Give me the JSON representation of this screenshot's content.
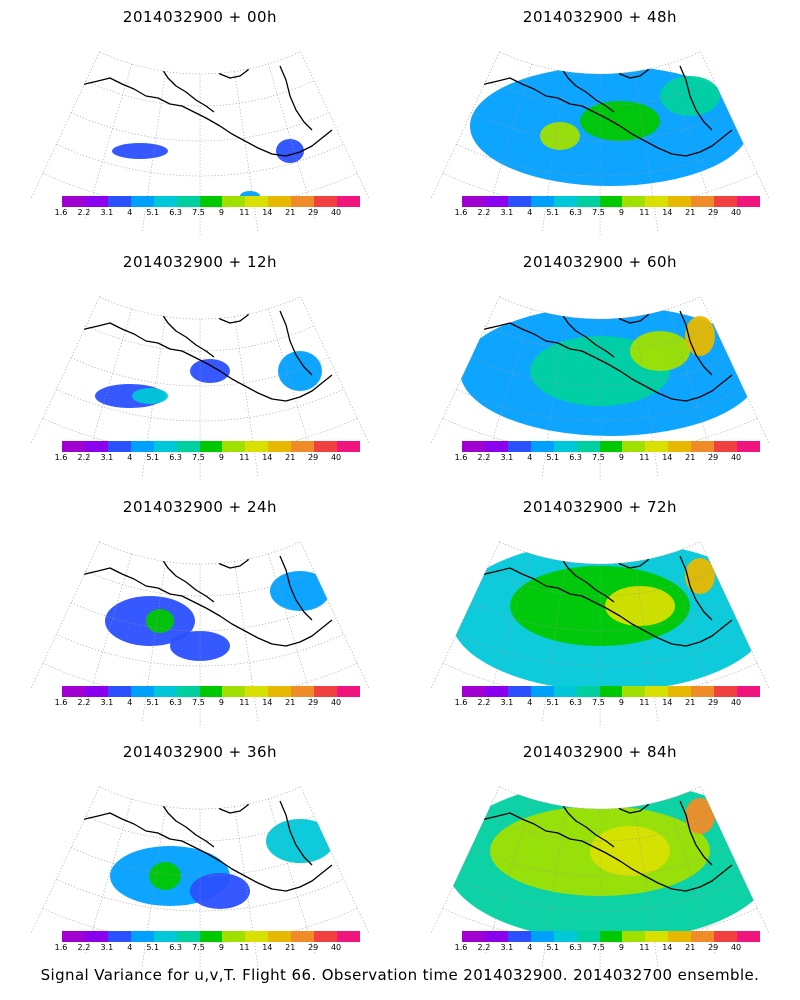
{
  "colorbar": {
    "labels": [
      "1.6",
      "2.2",
      "3.1",
      "4",
      "5.1",
      "6.3",
      "7.5",
      "9",
      "11",
      "14",
      "21",
      "29",
      "40"
    ],
    "colors": [
      "#a000d0",
      "#8a00ee",
      "#2a50ff",
      "#00a0ff",
      "#00c8d8",
      "#00d0a0",
      "#00c800",
      "#a0e000",
      "#d8e000",
      "#e8b800",
      "#f08c28",
      "#f04040",
      "#f0147d"
    ]
  },
  "panels": [
    {
      "title": "2014032900 + 00h",
      "level": 0
    },
    {
      "title": "2014032900 + 48h",
      "level": 4
    },
    {
      "title": "2014032900 + 12h",
      "level": 1
    },
    {
      "title": "2014032900 + 60h",
      "level": 5
    },
    {
      "title": "2014032900 + 24h",
      "level": 2
    },
    {
      "title": "2014032900 + 72h",
      "level": 6
    },
    {
      "title": "2014032900 + 36h",
      "level": 3
    },
    {
      "title": "2014032900 + 84h",
      "level": 7
    }
  ],
  "footer": "Signal Variance for u,v,T. Flight 66. Observation time 2014032900. 2014032700 ensemble."
}
